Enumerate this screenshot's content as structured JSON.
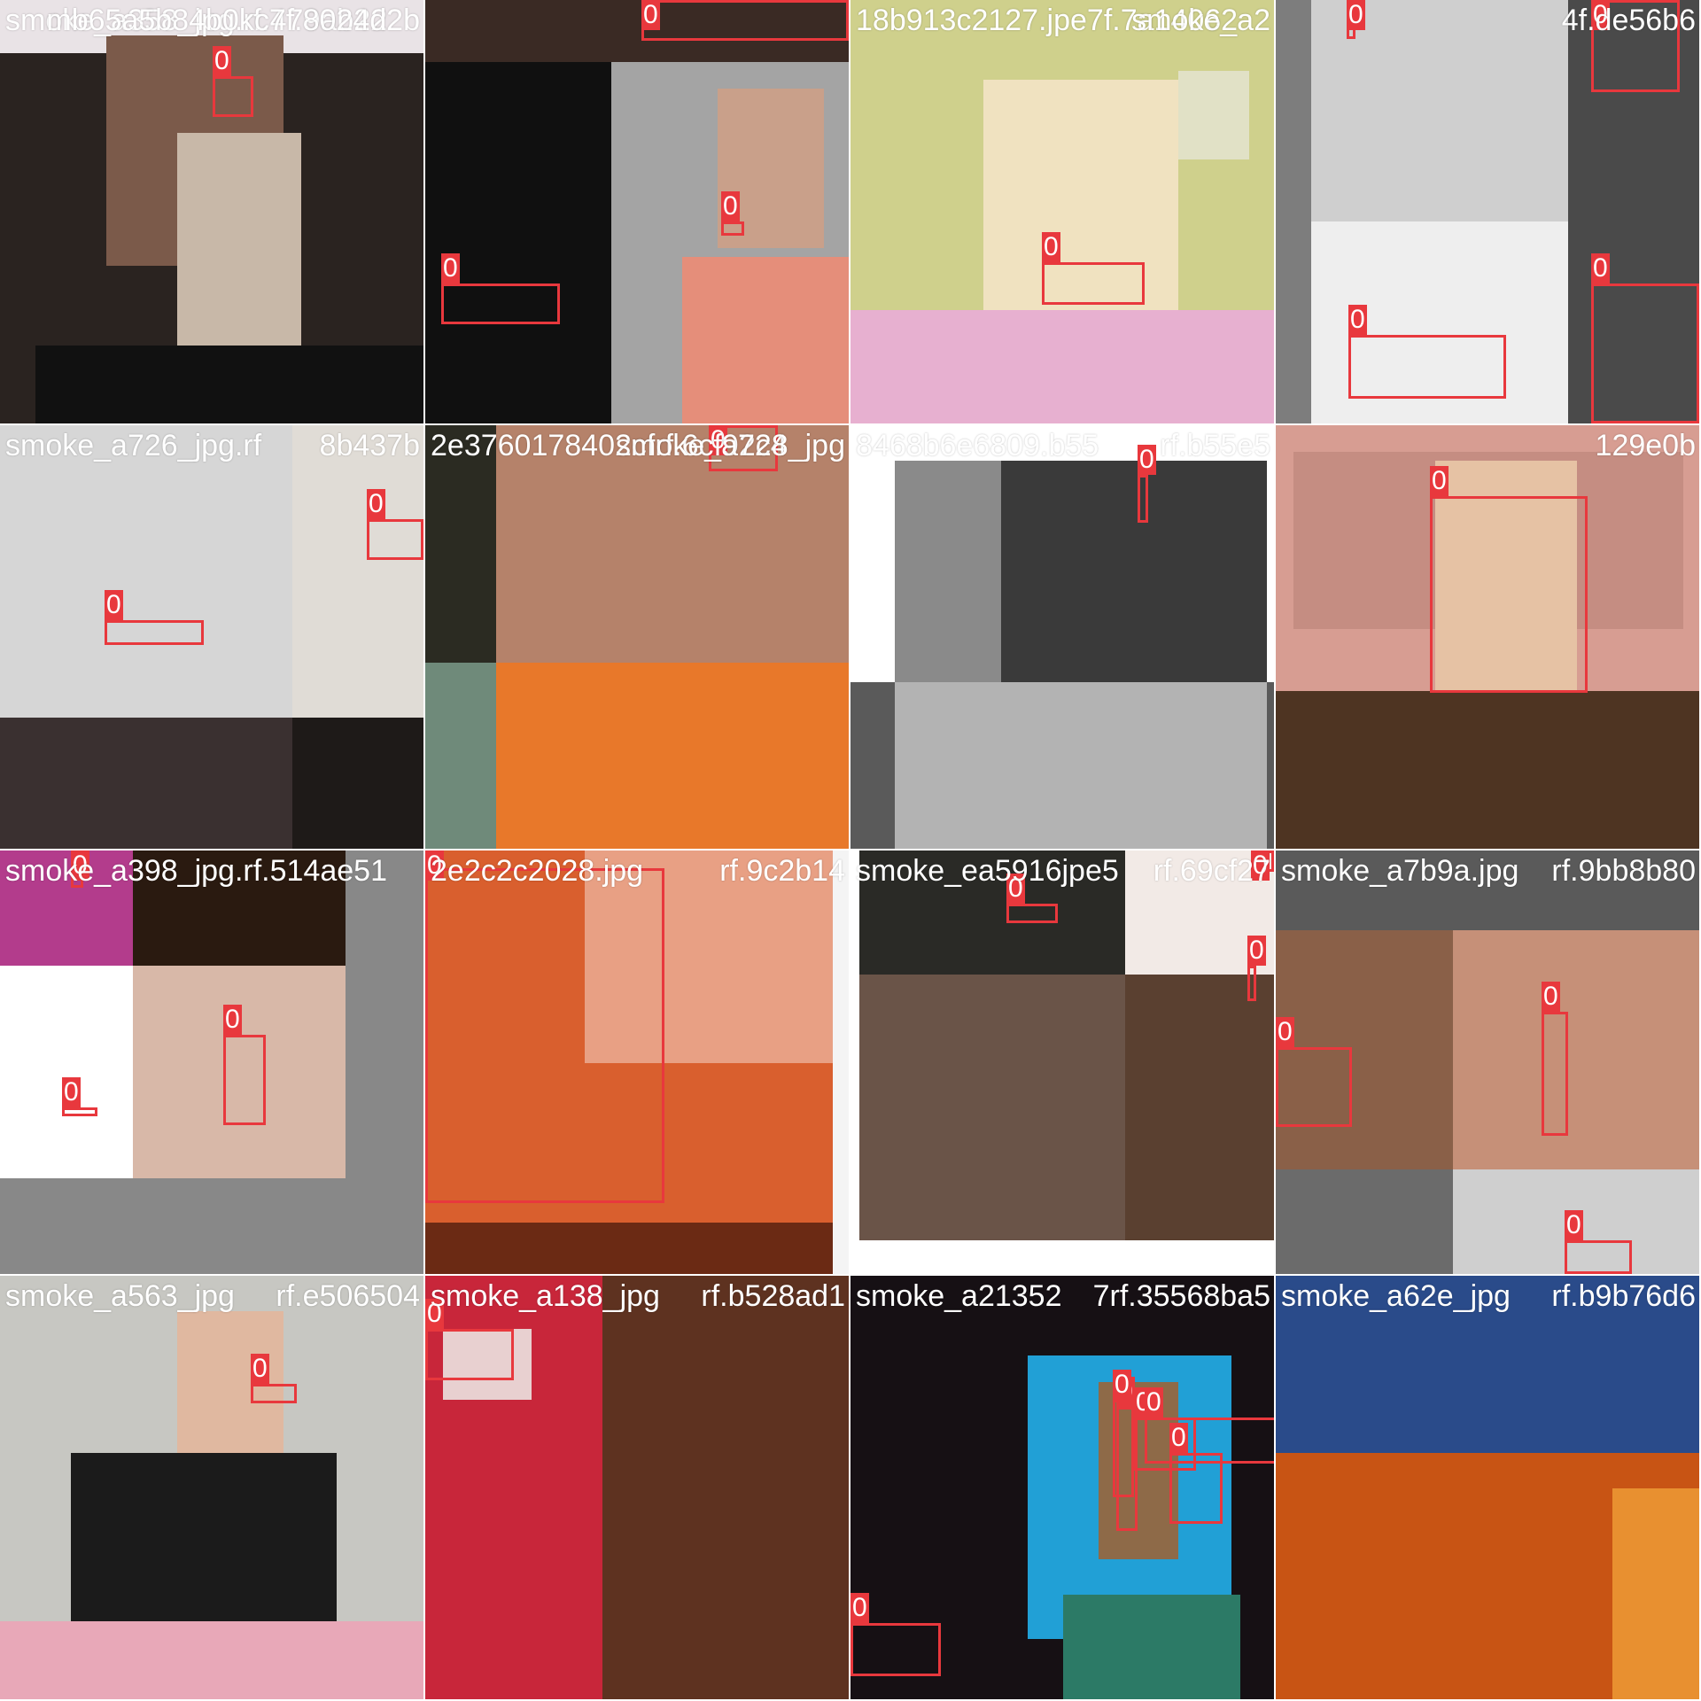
{
  "box_color": "#e8383d",
  "tiles": [
    {
      "filename": "smoke_a358_jpg.rf.479ab22",
      "class_label": "0",
      "overlap_text": "mb65a5b84b0kc7f.8024d2b"
    },
    {
      "filename": "",
      "class_label": "0"
    },
    {
      "filename": "18b913c2127.jpe7f.7a14062",
      "class_label": "0",
      "overlap_text": "smoke_a2"
    },
    {
      "filename": "",
      "class_label": "0",
      "overlap_text": "4f.de56b6"
    },
    {
      "filename": "smoke_a726_jpg.rf",
      "class_label": "0",
      "overlap_text": "8b437b"
    },
    {
      "filename": "2e3760178402cfrf.6cf92c4",
      "class_label": "0",
      "overlap_text": "smoke_a728_jpg"
    },
    {
      "filename": "8468b6e6809.b55",
      "class_label": "0",
      "overlap_text": "rf.b55e5"
    },
    {
      "filename": "",
      "class_label": "0",
      "overlap_text": "129e0b"
    },
    {
      "filename": "smoke_a398_jpg.rf.514ae51",
      "class_label": "0"
    },
    {
      "filename": "2e2c2c2028.jpg",
      "class_label": "0",
      "overlap_text": "rf.9c2b14"
    },
    {
      "filename": "smoke_ea5916jpe5",
      "class_label": "0",
      "overlap_text": "rf.69cf27"
    },
    {
      "filename": "smoke_a7b9a.jpg",
      "class_label": "0",
      "overlap_text": "rf.9bb8b80"
    },
    {
      "filename": "smoke_a563_jpg",
      "class_label": "0",
      "overlap_text": "rf.e506504"
    },
    {
      "filename": "smoke_a138_jpg",
      "class_label": "0",
      "overlap_text": "rf.b528ad1"
    },
    {
      "filename": "smoke_a21352",
      "class_label": "0",
      "overlap_text": "7rf.35568ba5"
    },
    {
      "filename": "smoke_a62e_jpg",
      "class_label": "0",
      "overlap_text": "rf.b9b76d6"
    }
  ]
}
